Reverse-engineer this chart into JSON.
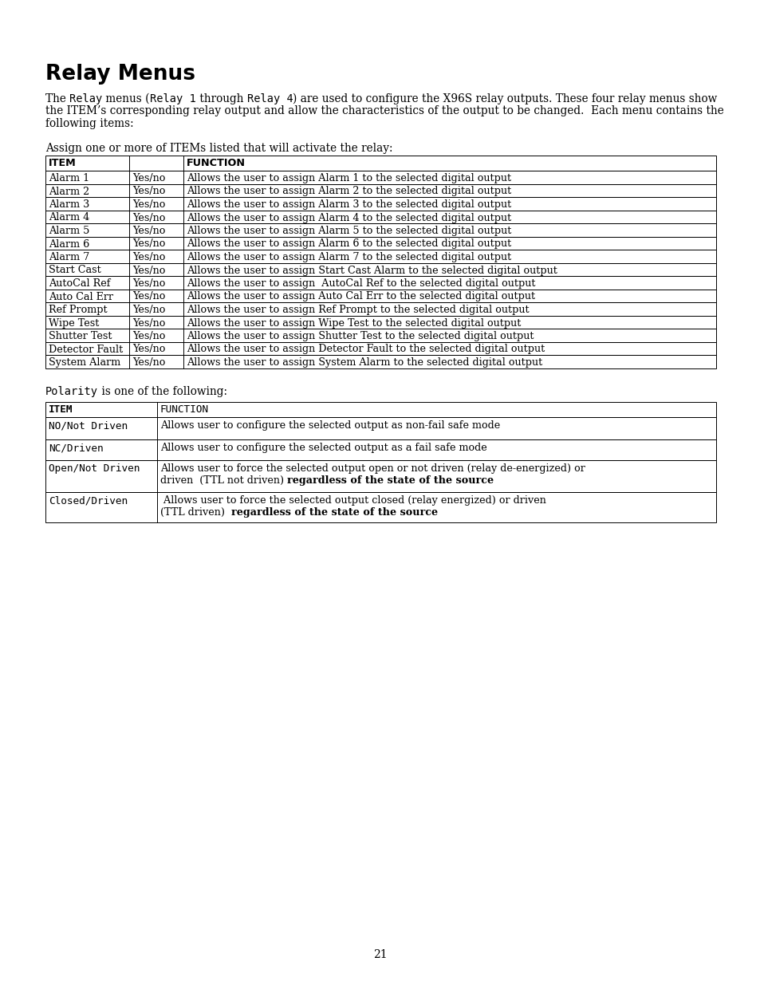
{
  "title": "Relay Menus",
  "table1_rows": [
    [
      "Alarm 1",
      "Yes/no",
      "Allows the user to assign Alarm 1 to the selected digital output"
    ],
    [
      "Alarm 2",
      "Yes/no",
      "Allows the user to assign Alarm 2 to the selected digital output"
    ],
    [
      "Alarm 3",
      "Yes/no",
      "Allows the user to assign Alarm 3 to the selected digital output"
    ],
    [
      "Alarm 4",
      "Yes/no",
      "Allows the user to assign Alarm 4 to the selected digital output"
    ],
    [
      "Alarm 5",
      "Yes/no",
      "Allows the user to assign Alarm 5 to the selected digital output"
    ],
    [
      "Alarm 6",
      "Yes/no",
      "Allows the user to assign Alarm 6 to the selected digital output"
    ],
    [
      "Alarm 7",
      "Yes/no",
      "Allows the user to assign Alarm 7 to the selected digital output"
    ],
    [
      "Start Cast",
      "Yes/no",
      "Allows the user to assign Start Cast Alarm to the selected digital output"
    ],
    [
      "AutoCal Ref",
      "Yes/no",
      "Allows the user to assign  AutoCal Ref to the selected digital output"
    ],
    [
      "Auto Cal Err",
      "Yes/no",
      "Allows the user to assign Auto Cal Err to the selected digital output"
    ],
    [
      "Ref Prompt",
      "Yes/no",
      "Allows the user to assign Ref Prompt to the selected digital output"
    ],
    [
      "Wipe Test",
      "Yes/no",
      "Allows the user to assign Wipe Test to the selected digital output"
    ],
    [
      "Shutter Test",
      "Yes/no",
      "Allows the user to assign Shutter Test to the selected digital output"
    ],
    [
      "Detector Fault",
      "Yes/no",
      "Allows the user to assign Detector Fault to the selected digital output"
    ],
    [
      "System Alarm",
      "Yes/no",
      "Allows the user to assign System Alarm to the selected digital output"
    ]
  ],
  "table2_rows": [
    {
      "item": "NO/Not Driven",
      "func_parts": [
        {
          "text": "Allows user to configure the selected output as non-fail safe mode",
          "bold": false
        }
      ],
      "nlines": 1
    },
    {
      "item": "NC/Driven",
      "func_parts": [
        {
          "text": "Allows user to configure the selected output as a fail safe mode",
          "bold": false
        }
      ],
      "nlines": 1
    },
    {
      "item": "Open/Not Driven",
      "func_parts": [
        {
          "text": "Allows user to force the selected output open or not driven (relay de-energized) or\ndriven  (TTL not driven) ",
          "bold": false
        },
        {
          "text": "regardless of the state of the source",
          "bold": true
        }
      ],
      "nlines": 2
    },
    {
      "item": "Closed/Driven",
      "func_parts": [
        {
          "text": " Allows user to force the selected output closed (relay energized) or driven\n(TTL driven)  ",
          "bold": false
        },
        {
          "text": "regardless of the state of the source",
          "bold": true
        }
      ],
      "nlines": 2
    }
  ],
  "page_number": "21",
  "bg_color": "#ffffff",
  "text_color": "#000000",
  "border_color": "#000000"
}
